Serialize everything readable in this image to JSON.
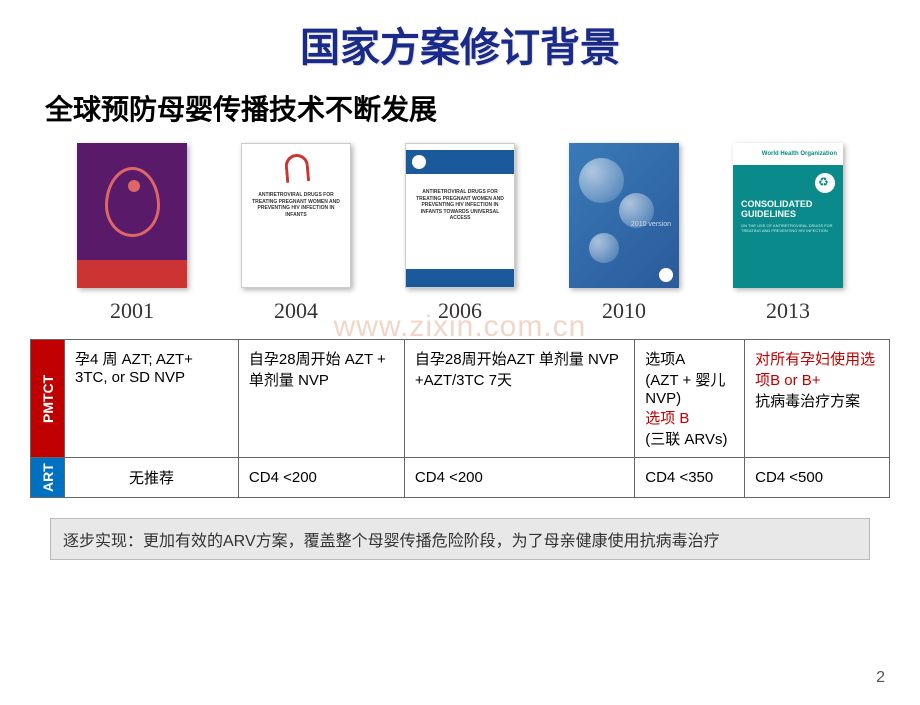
{
  "title": "国家方案修订背景",
  "subtitle": "全球预防母婴传播技术不断发展",
  "watermark": "www.zixin.com.cn",
  "covers": {
    "years": [
      "2001",
      "2004",
      "2006",
      "2010",
      "2013"
    ],
    "c2004_text": "ANTIRETROVIRAL DRUGS FOR TREATING PREGNANT WOMEN AND PREVENTING HIV INFECTION IN INFANTS",
    "c2006_text": "ANTIRETROVIRAL DRUGS FOR TREATING PREGNANT WOMEN AND PREVENTING HIV INFECTION IN INFANTS TOWARDS UNIVERSAL ACCESS",
    "c2010_ver": "2010 version",
    "c2013_title": "CONSOLIDATED GUIDELINES",
    "c2013_sub": "ON THE USE OF ANTIRETROVIRAL DRUGS FOR TREATING AND PREVENTING HIV INFECTION",
    "c2013_logo": "World Health Organization"
  },
  "table": {
    "pmtct_label": "PMTCT",
    "art_label": "ART",
    "pmtct": {
      "c2001": "孕4 周 AZT; AZT+ 3TC, or SD NVP",
      "c2004": "自孕28周开始 AZT + 单剂量 NVP",
      "c2006": "自孕28周开始AZT 单剂量 NVP +AZT/3TC 7天",
      "c2010_a": "选项A",
      "c2010_a2": "(AZT + 婴儿 NVP)",
      "c2010_b": "选项 B",
      "c2010_b2": "(三联 ARVs)",
      "c2013_a": "对所有孕妇使用选项B or B+",
      "c2013_b": "抗病毒治疗方案"
    },
    "art": {
      "c2001": "无推荐",
      "c2004": "CD4 <200",
      "c2006": "CD4 <200",
      "c2010": "CD4 <350",
      "c2013": "CD4 <500"
    }
  },
  "summary": "逐步实现：更加有效的ARV方案，覆盖整个母婴传播危险阶段，为了母亲健康使用抗病毒治疗",
  "page_number": "2",
  "colors": {
    "title": "#1a2a8a",
    "pmtct_bg": "#c00000",
    "art_bg": "#0070c0",
    "red_text": "#c00000",
    "summary_bg": "#e8e8e8"
  }
}
